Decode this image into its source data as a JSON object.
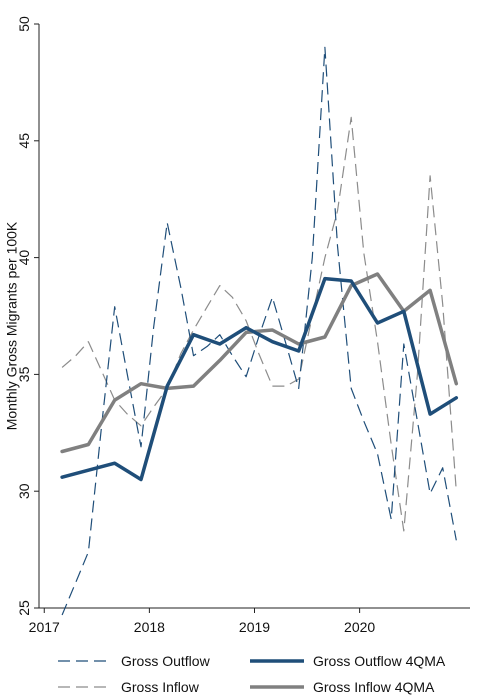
{
  "chart_data": {
    "type": "line",
    "ylabel": "Monthly Gross Migrants per 100K",
    "xlabel": "",
    "ylim": [
      25,
      50
    ],
    "yticks": [
      25,
      30,
      35,
      40,
      45,
      50
    ],
    "xlim": [
      2016.95,
      2021.05
    ],
    "xticks": [
      2017,
      2018,
      2019,
      2020
    ],
    "x": [
      2017.17,
      2017.42,
      2017.67,
      2017.92,
      2018.17,
      2018.42,
      2018.67,
      2018.92,
      2019.17,
      2019.42,
      2019.67,
      2019.92,
      2020.17,
      2020.42,
      2020.67,
      2020.92
    ],
    "grid": false,
    "legend_position": "bottom",
    "series": [
      {
        "name": "Gross Outflow",
        "style": "dashed",
        "color": "#1f4e79",
        "width": 1.2,
        "x": [
          2017.17,
          2017.3,
          2017.42,
          2017.55,
          2017.67,
          2017.79,
          2017.92,
          2018.04,
          2018.17,
          2018.3,
          2018.42,
          2018.55,
          2018.67,
          2018.79,
          2018.92,
          2019.04,
          2019.17,
          2019.3,
          2019.42,
          2019.55,
          2019.67,
          2019.79,
          2019.92,
          2020.04,
          2020.17,
          2020.3,
          2020.42,
          2020.55,
          2020.67,
          2020.79,
          2020.92
        ],
        "values": [
          24.7,
          26.1,
          27.4,
          33.0,
          37.9,
          35.0,
          31.9,
          37.0,
          41.5,
          38.7,
          35.8,
          36.2,
          36.7,
          35.8,
          34.9,
          36.6,
          38.3,
          36.3,
          34.4,
          40.0,
          49.0,
          40.5,
          34.4,
          33.0,
          31.6,
          28.8,
          36.3,
          33.0,
          29.9,
          31.0,
          27.9
        ]
      },
      {
        "name": "Gross Inflow",
        "style": "dashed",
        "color": "#8c8c8c",
        "width": 1.2,
        "x": [
          2017.17,
          2017.3,
          2017.42,
          2017.55,
          2017.67,
          2017.79,
          2017.92,
          2018.04,
          2018.17,
          2018.3,
          2018.42,
          2018.55,
          2018.67,
          2018.79,
          2018.92,
          2019.04,
          2019.17,
          2019.3,
          2019.42,
          2019.55,
          2019.67,
          2019.79,
          2019.92,
          2020.04,
          2020.17,
          2020.3,
          2020.42,
          2020.55,
          2020.67,
          2020.79,
          2020.92
        ],
        "values": [
          35.3,
          35.8,
          36.4,
          35.1,
          33.9,
          33.3,
          32.8,
          33.6,
          34.4,
          35.9,
          36.9,
          37.9,
          38.8,
          38.3,
          37.3,
          35.9,
          34.5,
          34.5,
          34.8,
          37.5,
          40.0,
          42.0,
          46.0,
          40.2,
          36.4,
          32.0,
          28.3,
          35.0,
          43.5,
          38.0,
          30.0
        ]
      },
      {
        "name": "Gross Outflow 4QMA",
        "style": "solid",
        "color": "#1f4e79",
        "width": 3.5,
        "values": [
          30.6,
          30.9,
          31.2,
          30.5,
          34.5,
          36.7,
          36.3,
          37.0,
          36.4,
          36.0,
          39.1,
          39.0,
          37.2,
          37.7,
          33.3,
          34.0
        ]
      },
      {
        "name": "Gross Inflow 4QMA",
        "style": "solid",
        "color": "#808080",
        "width": 3.5,
        "values": [
          31.7,
          32.0,
          33.9,
          34.6,
          34.4,
          34.5,
          35.6,
          36.8,
          36.9,
          36.3,
          36.6,
          38.8,
          39.3,
          37.7,
          38.6,
          34.6
        ]
      }
    ]
  }
}
